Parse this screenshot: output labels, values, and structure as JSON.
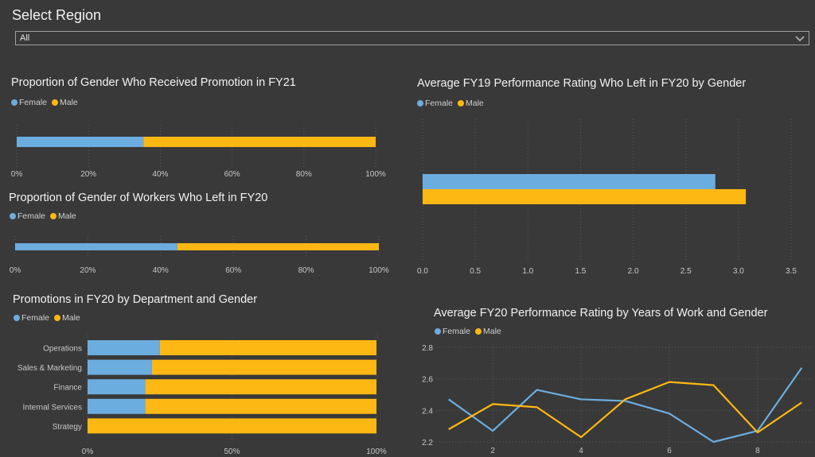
{
  "header": {
    "title": "Select Region",
    "region_dropdown": {
      "selected": "All",
      "icon": "chevron-down-icon"
    }
  },
  "colors": {
    "female": "#6caddf",
    "male": "#fdb813",
    "background": "#393939",
    "grid": "#5a5a5a",
    "tick_text": "#c8c8c8"
  },
  "legend": {
    "female": "Female",
    "male": "Male"
  },
  "chart_data": [
    {
      "id": "promotion-fy21",
      "type": "bar",
      "stacked": "100%",
      "orientation": "horizontal",
      "title": "Proportion of Gender Who Received Promotion in FY21",
      "categories": [
        ""
      ],
      "series": [
        {
          "name": "Female",
          "values": [
            0.353
          ]
        },
        {
          "name": "Male",
          "values": [
            0.647
          ]
        }
      ],
      "xlim": [
        0,
        1
      ],
      "xticks": [
        "0%",
        "20%",
        "40%",
        "60%",
        "80%",
        "100%"
      ],
      "grid": true,
      "legend": "top-left"
    },
    {
      "id": "left-fy20",
      "type": "bar",
      "stacked": "100%",
      "orientation": "horizontal",
      "title": "Proportion of Gender of Workers Who Left in FY20",
      "categories": [
        ""
      ],
      "series": [
        {
          "name": "Female",
          "values": [
            0.446
          ]
        },
        {
          "name": "Male",
          "values": [
            0.554
          ]
        }
      ],
      "xlim": [
        0,
        1
      ],
      "xticks": [
        "0%",
        "20%",
        "40%",
        "60%",
        "80%",
        "100%"
      ],
      "grid": true,
      "legend": "top-left"
    },
    {
      "id": "promotions-dept",
      "type": "bar",
      "stacked": "100%",
      "orientation": "horizontal",
      "title": "Promotions in FY20 by Department and Gender",
      "categories": [
        "Operations",
        "Sales & Marketing",
        "Finance",
        "Internal Services",
        "Strategy"
      ],
      "series": [
        {
          "name": "Female",
          "values": [
            0.25,
            0.223,
            0.2,
            0.2,
            0.0
          ]
        },
        {
          "name": "Male",
          "values": [
            0.75,
            0.777,
            0.8,
            0.8,
            1.0
          ]
        }
      ],
      "xlim": [
        0,
        1
      ],
      "xticks": [
        "0%",
        "50%",
        "100%"
      ],
      "grid": true,
      "legend": "top-left"
    },
    {
      "id": "perf-left",
      "type": "bar",
      "orientation": "horizontal",
      "title": "Average FY19 Performance Rating Who Left in FY20 by Gender",
      "categories": [
        ""
      ],
      "series": [
        {
          "name": "Female",
          "values": [
            2.78
          ]
        },
        {
          "name": "Male",
          "values": [
            3.07
          ]
        }
      ],
      "xlim": [
        0,
        3.5
      ],
      "xticks": [
        "0.0",
        "0.5",
        "1.0",
        "1.5",
        "2.0",
        "2.5",
        "3.0",
        "3.5"
      ],
      "grid": true,
      "legend": "top-left"
    },
    {
      "id": "perf-years",
      "type": "line",
      "title": "Average FY20 Performance Rating by Years of Work and Gender",
      "x": [
        1,
        2,
        3,
        4,
        5,
        6,
        7,
        8,
        9
      ],
      "series": [
        {
          "name": "Female",
          "values": [
            2.47,
            2.27,
            2.53,
            2.47,
            2.46,
            2.38,
            2.2,
            2.27,
            2.67
          ]
        },
        {
          "name": "Male",
          "values": [
            2.28,
            2.44,
            2.42,
            2.23,
            2.47,
            2.58,
            2.56,
            2.26,
            2.45
          ]
        }
      ],
      "xlim": [
        0.5,
        9.3
      ],
      "ylim": [
        2.2,
        2.8
      ],
      "xticks": [
        "2",
        "4",
        "6",
        "8"
      ],
      "yticks": [
        "2.2",
        "2.4",
        "2.6",
        "2.8"
      ],
      "grid": true,
      "legend": "top-left"
    }
  ]
}
